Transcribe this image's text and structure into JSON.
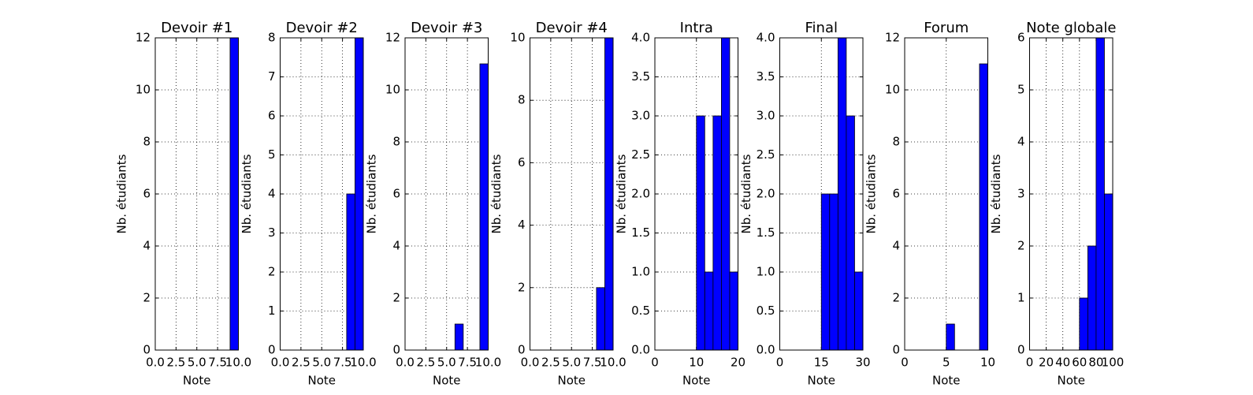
{
  "chart_data": [
    {
      "type": "histogram",
      "title": "Devoir #1",
      "xlabel": "Note",
      "ylabel": "Nb. étudiants",
      "color": "#0000ff",
      "grid": true,
      "bins": [
        0,
        1,
        2,
        3,
        4,
        5,
        6,
        7,
        8,
        9,
        10
      ],
      "counts": [
        0,
        0,
        0,
        0,
        0,
        0,
        0,
        0,
        0,
        12
      ],
      "xlim": [
        0,
        10
      ],
      "xticks": [
        {
          "value": 0,
          "label": "0.0"
        },
        2.5,
        {
          "value": 5,
          "label": "5.0"
        },
        7.5,
        {
          "value": 10,
          "label": "10.0"
        }
      ],
      "ylim": [
        0,
        12
      ],
      "yticks": [
        0,
        2,
        4,
        6,
        8,
        10,
        12
      ]
    },
    {
      "type": "histogram",
      "title": "Devoir #2",
      "xlabel": "Note",
      "ylabel": "Nb. étudiants",
      "color": "#0000ff",
      "grid": true,
      "bins": [
        0,
        1,
        2,
        3,
        4,
        5,
        6,
        7,
        8,
        9,
        10
      ],
      "counts": [
        0,
        0,
        0,
        0,
        0,
        0,
        0,
        0,
        4,
        8
      ],
      "xlim": [
        0,
        10
      ],
      "xticks": [
        {
          "value": 0,
          "label": "0.0"
        },
        2.5,
        {
          "value": 5,
          "label": "5.0"
        },
        7.5,
        {
          "value": 10,
          "label": "10.0"
        }
      ],
      "ylim": [
        0,
        8
      ],
      "yticks": [
        0,
        1,
        2,
        3,
        4,
        5,
        6,
        7,
        8
      ]
    },
    {
      "type": "histogram",
      "title": "Devoir #3",
      "xlabel": "Note",
      "ylabel": "Nb. étudiants",
      "color": "#0000ff",
      "grid": true,
      "bins": [
        0,
        1,
        2,
        3,
        4,
        5,
        6,
        7,
        8,
        9,
        10
      ],
      "counts": [
        0,
        0,
        0,
        0,
        0,
        0,
        1,
        0,
        0,
        11
      ],
      "xlim": [
        0,
        10
      ],
      "xticks": [
        {
          "value": 0,
          "label": "0.0"
        },
        2.5,
        {
          "value": 5,
          "label": "5.0"
        },
        7.5,
        {
          "value": 10,
          "label": "10.0"
        }
      ],
      "ylim": [
        0,
        12
      ],
      "yticks": [
        0,
        2,
        4,
        6,
        8,
        10,
        12
      ]
    },
    {
      "type": "histogram",
      "title": "Devoir #4",
      "xlabel": "Note",
      "ylabel": "Nb. étudiants",
      "color": "#0000ff",
      "grid": true,
      "bins": [
        0,
        1,
        2,
        3,
        4,
        5,
        6,
        7,
        8,
        9,
        10
      ],
      "counts": [
        0,
        0,
        0,
        0,
        0,
        0,
        0,
        0,
        2,
        10
      ],
      "xlim": [
        0,
        10
      ],
      "xticks": [
        {
          "value": 0,
          "label": "0.0"
        },
        2.5,
        {
          "value": 5,
          "label": "5.0"
        },
        7.5,
        {
          "value": 10,
          "label": "10.0"
        }
      ],
      "ylim": [
        0,
        10
      ],
      "yticks": [
        0,
        2,
        4,
        6,
        8,
        10
      ]
    },
    {
      "type": "histogram",
      "title": "Intra",
      "xlabel": "Note",
      "ylabel": "Nb. étudiants",
      "color": "#0000ff",
      "grid": true,
      "bins": [
        0,
        2,
        4,
        6,
        8,
        10,
        12,
        14,
        16,
        18,
        20
      ],
      "counts": [
        0,
        0,
        0,
        0,
        0,
        3,
        1,
        3,
        4,
        1
      ],
      "xlim": [
        0,
        20
      ],
      "xticks": [
        0,
        10,
        20
      ],
      "ylim": [
        0,
        4
      ],
      "yticks": [
        {
          "value": 0,
          "label": "0.0"
        },
        0.5,
        {
          "value": 1,
          "label": "1.0"
        },
        1.5,
        {
          "value": 2,
          "label": "2.0"
        },
        2.5,
        {
          "value": 3,
          "label": "3.0"
        },
        3.5,
        {
          "value": 4,
          "label": "4.0"
        }
      ]
    },
    {
      "type": "histogram",
      "title": "Final",
      "xlabel": "Note",
      "ylabel": "Nb. étudiants",
      "color": "#0000ff",
      "grid": true,
      "bins": [
        0,
        3,
        6,
        9,
        12,
        15,
        18,
        21,
        24,
        27,
        30
      ],
      "counts": [
        0,
        0,
        0,
        0,
        0,
        2,
        2,
        4,
        3,
        1
      ],
      "xlim": [
        0,
        30
      ],
      "xticks": [
        0,
        15,
        30
      ],
      "ylim": [
        0,
        4
      ],
      "yticks": [
        {
          "value": 0,
          "label": "0.0"
        },
        0.5,
        {
          "value": 1,
          "label": "1.0"
        },
        1.5,
        {
          "value": 2,
          "label": "2.0"
        },
        2.5,
        {
          "value": 3,
          "label": "3.0"
        },
        3.5,
        {
          "value": 4,
          "label": "4.0"
        }
      ]
    },
    {
      "type": "histogram",
      "title": "Forum",
      "xlabel": "Note",
      "ylabel": "Nb. étudiants",
      "color": "#0000ff",
      "grid": true,
      "bins": [
        0,
        1,
        2,
        3,
        4,
        5,
        6,
        7,
        8,
        9,
        10
      ],
      "counts": [
        0,
        0,
        0,
        0,
        0,
        1,
        0,
        0,
        0,
        11
      ],
      "xlim": [
        0,
        10
      ],
      "xticks": [
        0,
        5,
        10
      ],
      "ylim": [
        0,
        12
      ],
      "yticks": [
        0,
        2,
        4,
        6,
        8,
        10,
        12
      ]
    },
    {
      "type": "histogram",
      "title": "Note globale",
      "xlabel": "Note",
      "ylabel": "Nb. étudiants",
      "color": "#0000ff",
      "grid": true,
      "bins": [
        0,
        10,
        20,
        30,
        40,
        50,
        60,
        70,
        80,
        90,
        100
      ],
      "counts": [
        0,
        0,
        0,
        0,
        0,
        0,
        1,
        2,
        6,
        3
      ],
      "xlim": [
        0,
        100
      ],
      "xticks": [
        0,
        20,
        40,
        60,
        80,
        100
      ],
      "ylim": [
        0,
        6
      ],
      "yticks": [
        0,
        1,
        2,
        3,
        4,
        5,
        6
      ]
    }
  ]
}
